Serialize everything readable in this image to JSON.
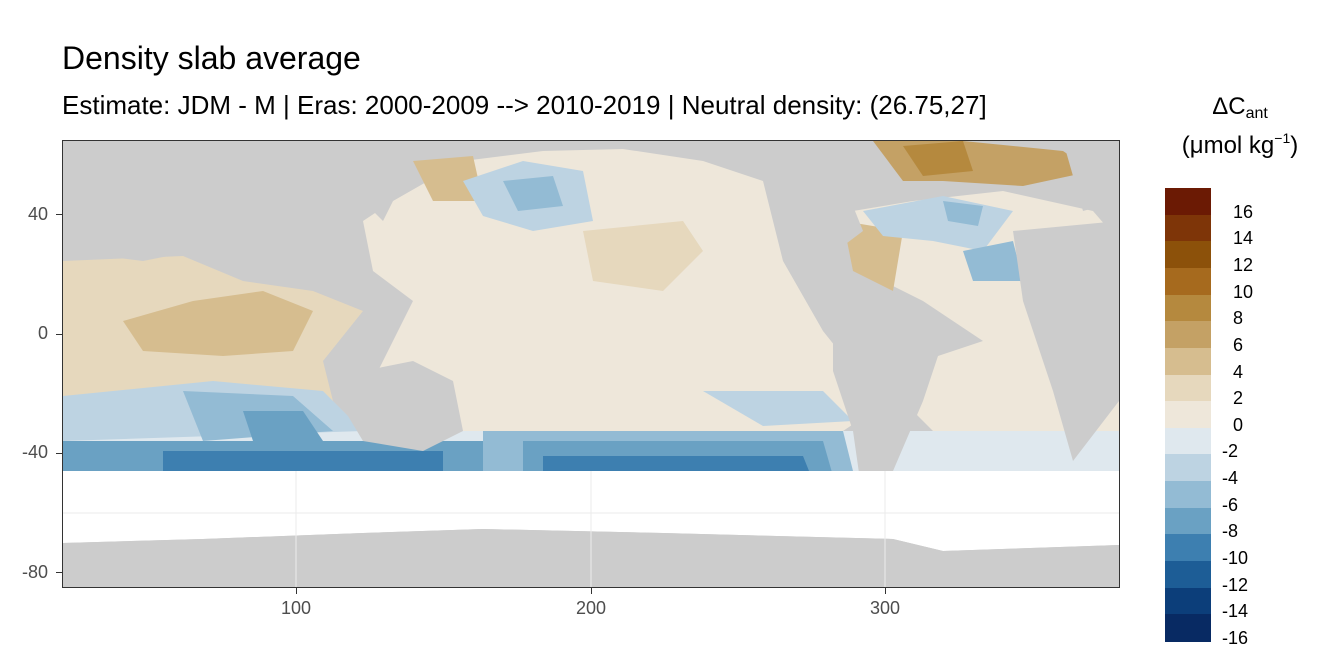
{
  "title": "Density slab average",
  "subtitle": "Estimate: JDM - M | Eras: 2000-2009 --> 2010-2019 | Neutral density: (26.75,27]",
  "legend": {
    "title_main": "ΔC",
    "title_sub": "ant",
    "unit_open": "(μmol kg",
    "unit_sup": "−1",
    "unit_close": ")",
    "levels": [
      {
        "label": "16",
        "color": "#6b1a04"
      },
      {
        "label": "14",
        "color": "#7e3508"
      },
      {
        "label": "12",
        "color": "#8c510a"
      },
      {
        "label": "10",
        "color": "#a66a1e"
      },
      {
        "label": "8",
        "color": "#b5893e"
      },
      {
        "label": "6",
        "color": "#c4a165"
      },
      {
        "label": "4",
        "color": "#d6bd8f"
      },
      {
        "label": "2",
        "color": "#e6d8bd"
      },
      {
        "label": "0",
        "color": "#eee7da"
      },
      {
        "label": "-2",
        "color": "#dfe8ee"
      },
      {
        "label": "-4",
        "color": "#bdd3e2"
      },
      {
        "label": "-6",
        "color": "#93bbd4"
      },
      {
        "label": "-8",
        "color": "#6aa1c3"
      },
      {
        "label": "-10",
        "color": "#3d7fb0"
      },
      {
        "label": "-12",
        "color": "#1d5d96"
      },
      {
        "label": "-14",
        "color": "#0c3e7a"
      },
      {
        "label": "-16",
        "color": "#082a63"
      }
    ]
  },
  "axes": {
    "x_ticks": [
      "100",
      "200",
      "300"
    ],
    "y_ticks": [
      "40",
      "0",
      "-40",
      "-80"
    ]
  },
  "colors": {
    "land": "#cccccc",
    "no_data": "#ffffff",
    "panel_background": "#ebebeb"
  }
}
